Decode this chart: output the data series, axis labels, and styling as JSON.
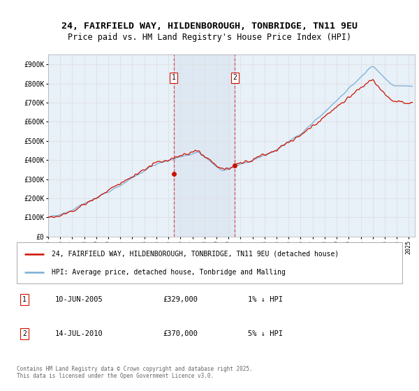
{
  "title_line1": "24, FAIRFIELD WAY, HILDENBOROUGH, TONBRIDGE, TN11 9EU",
  "title_line2": "Price paid vs. HM Land Registry's House Price Index (HPI)",
  "ylim": [
    0,
    950000
  ],
  "yticks": [
    0,
    100000,
    200000,
    300000,
    400000,
    500000,
    600000,
    700000,
    800000,
    900000
  ],
  "ytick_labels": [
    "£0",
    "£100K",
    "£200K",
    "£300K",
    "£400K",
    "£500K",
    "£600K",
    "£700K",
    "£800K",
    "£900K"
  ],
  "hpi_color": "#7aadd4",
  "price_color": "#cc1100",
  "grid_color": "#dddddd",
  "plot_bg_color": "#e8f0f8",
  "marker1_x": 2005.44,
  "marker1_y": 329000,
  "marker2_x": 2010.54,
  "marker2_y": 370000,
  "marker1_date": "10-JUN-2005",
  "marker1_price": "£329,000",
  "marker1_hpi": "1% ↓ HPI",
  "marker2_date": "14-JUL-2010",
  "marker2_price": "£370,000",
  "marker2_hpi": "5% ↓ HPI",
  "legend_line1": "24, FAIRFIELD WAY, HILDENBOROUGH, TONBRIDGE, TN11 9EU (detached house)",
  "legend_line2": "HPI: Average price, detached house, Tonbridge and Malling",
  "footnote": "Contains HM Land Registry data © Crown copyright and database right 2025.\nThis data is licensed under the Open Government Licence v3.0.",
  "xmin": 1995,
  "xmax": 2025.5,
  "seed": 12345
}
